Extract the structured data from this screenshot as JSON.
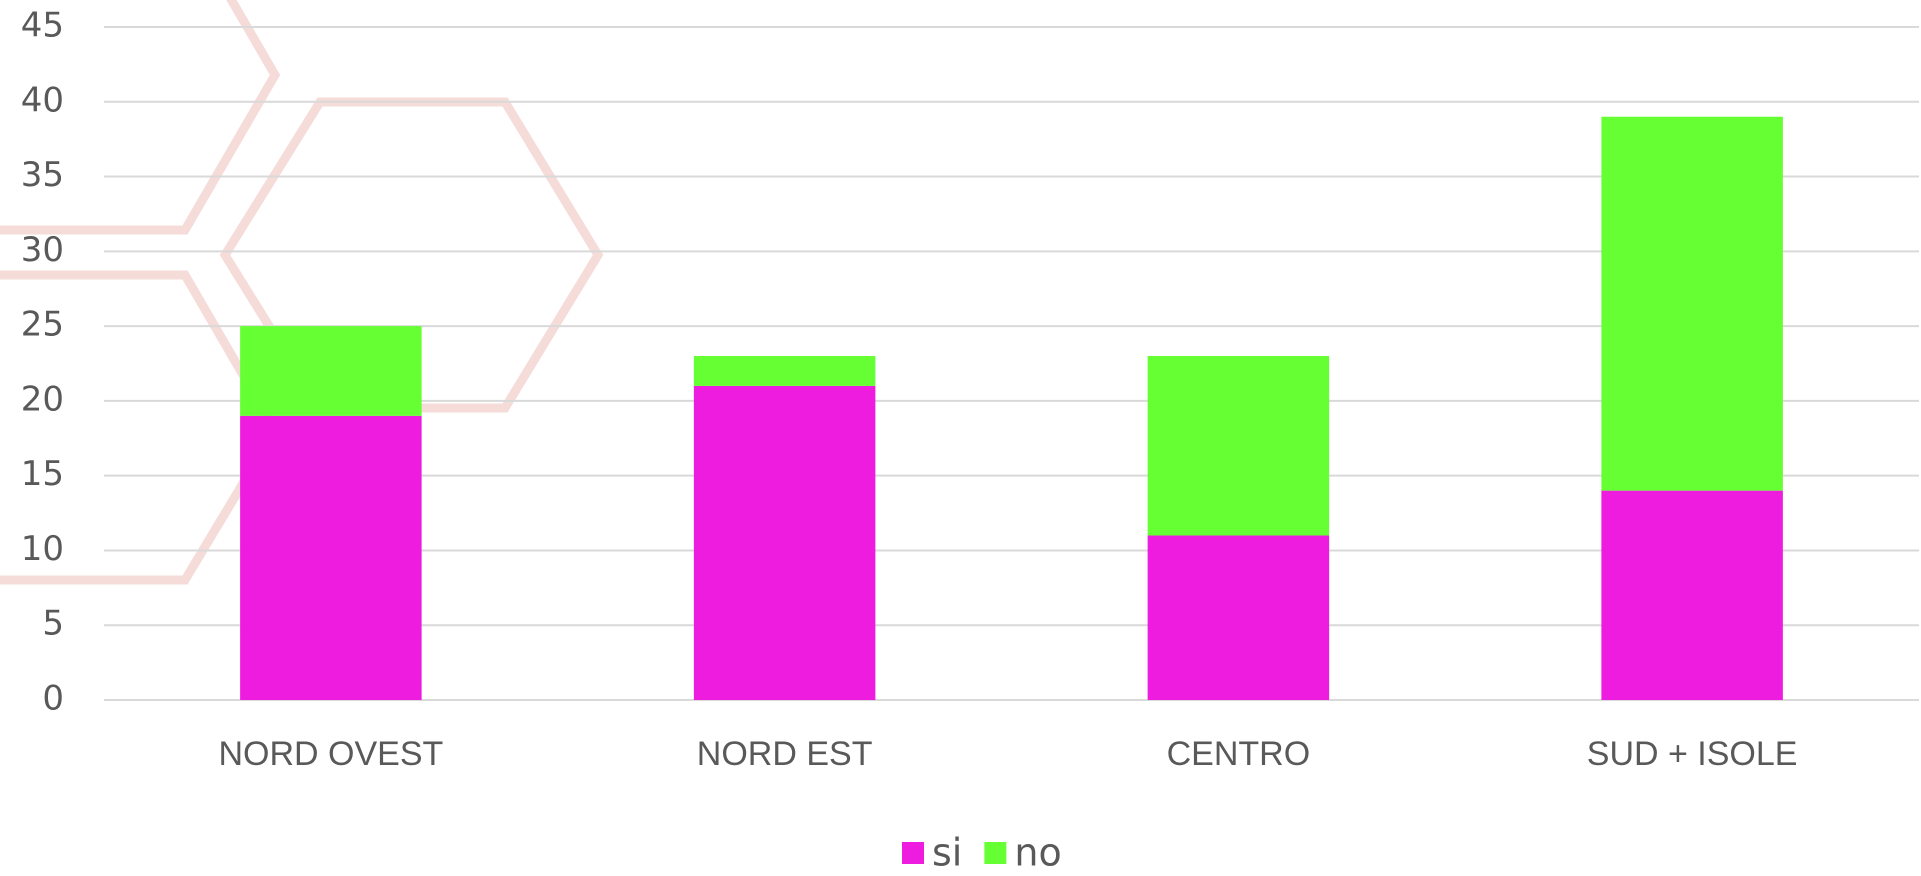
{
  "chart_data": {
    "type": "stacked_bar",
    "categories": [
      "NORD OVEST",
      "NORD EST",
      "CENTRO",
      "SUD + ISOLE"
    ],
    "series": [
      {
        "name": "si",
        "color": "#ee1cdf",
        "values": [
          19,
          21,
          11,
          14
        ]
      },
      {
        "name": "no",
        "color": "#66ff33",
        "values": [
          6,
          2,
          12,
          25
        ]
      }
    ],
    "ylim": [
      0,
      45
    ],
    "yticks": [
      0,
      5,
      10,
      15,
      20,
      25,
      30,
      35,
      40,
      45
    ],
    "grid": true,
    "legend": "bottom"
  }
}
